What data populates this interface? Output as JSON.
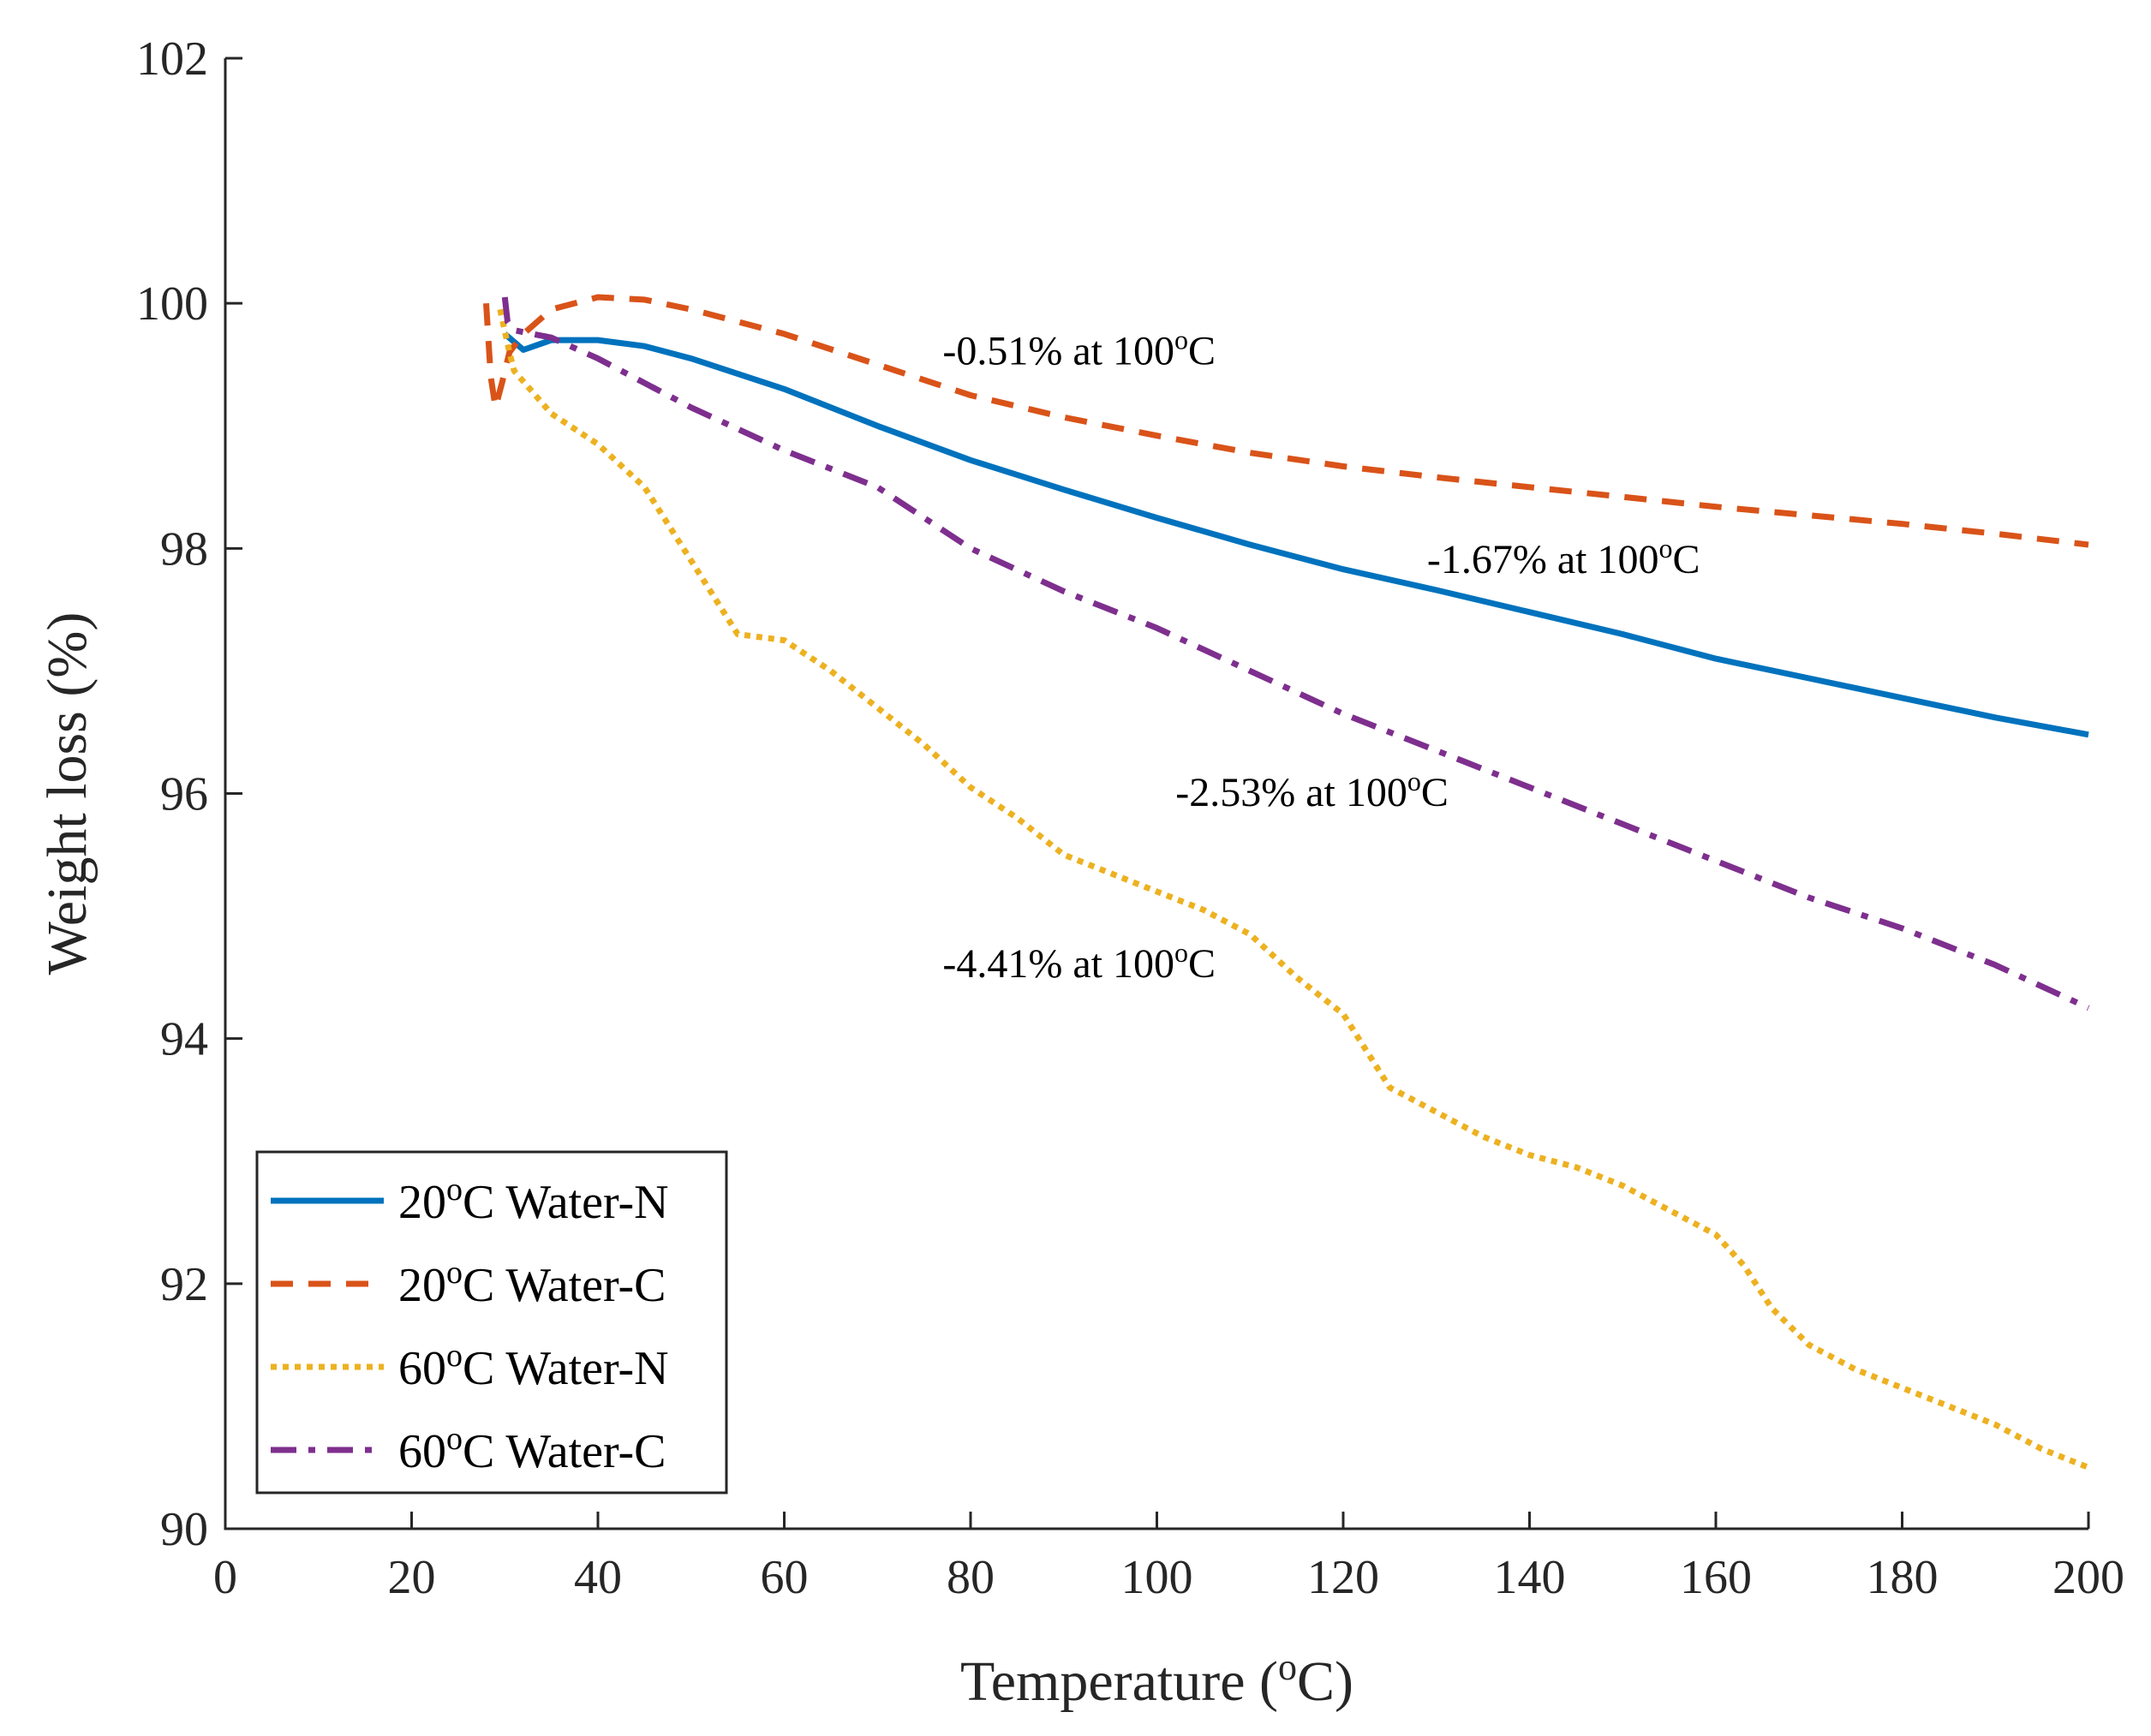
{
  "chart_data": {
    "type": "line",
    "title": "",
    "xlabel": {
      "prefix": "Temperature (",
      "sup": "o",
      "suffix": "C)"
    },
    "ylabel": "Weight loss (%)",
    "xlim": [
      0,
      200
    ],
    "ylim": [
      90,
      102
    ],
    "xticks": [
      "0",
      "20",
      "40",
      "60",
      "80",
      "100",
      "120",
      "140",
      "160",
      "180",
      "200"
    ],
    "yticks": [
      "90",
      "92",
      "94",
      "96",
      "98",
      "100",
      "102"
    ],
    "grid": false,
    "legend_position": "bottom-left",
    "series": [
      {
        "name": "20oC Water-N",
        "label": {
          "prefix": "20",
          "sup": "o",
          "suffix": "C Water-N"
        },
        "color": "#0072BD",
        "style": "solid",
        "x": [
          30,
          32,
          35,
          40,
          45,
          50,
          60,
          70,
          80,
          90,
          100,
          110,
          120,
          130,
          140,
          150,
          160,
          170,
          180,
          190,
          200
        ],
        "y": [
          99.75,
          99.62,
          99.7,
          99.7,
          99.65,
          99.55,
          99.3,
          99.0,
          98.72,
          98.48,
          98.25,
          98.03,
          97.83,
          97.66,
          97.48,
          97.3,
          97.1,
          96.94,
          96.78,
          96.62,
          96.48
        ]
      },
      {
        "name": "20oC Water-C",
        "label": {
          "prefix": "20",
          "sup": "o",
          "suffix": "C Water-C"
        },
        "color": "#D95319",
        "style": "dashed",
        "x": [
          28,
          28.5,
          29,
          29.7,
          30.5,
          32,
          35,
          40,
          45,
          50,
          60,
          70,
          80,
          90,
          100,
          110,
          120,
          130,
          140,
          150,
          160,
          170,
          180,
          190,
          200
        ],
        "y": [
          100.0,
          99.4,
          99.15,
          99.35,
          99.6,
          99.75,
          99.95,
          100.05,
          100.03,
          99.95,
          99.75,
          99.5,
          99.25,
          99.07,
          98.92,
          98.78,
          98.67,
          98.58,
          98.5,
          98.42,
          98.34,
          98.27,
          98.2,
          98.12,
          98.03
        ]
      },
      {
        "name": "60oC Water-N",
        "label": {
          "prefix": "60",
          "sup": "o",
          "suffix": "C Water-N"
        },
        "color": "#EDB120",
        "style": "dotted",
        "x": [
          29.5,
          30.5,
          31,
          35,
          40,
          45,
          50,
          55,
          60,
          65,
          70,
          75,
          80,
          85,
          90,
          95,
          100,
          105,
          110,
          115,
          120,
          125,
          130,
          135,
          140,
          145,
          150,
          155,
          160,
          163,
          166,
          170,
          175,
          180,
          185,
          190,
          195,
          200
        ],
        "y": [
          99.95,
          99.6,
          99.45,
          99.1,
          98.85,
          98.5,
          97.9,
          97.3,
          97.25,
          97.0,
          96.7,
          96.4,
          96.05,
          95.8,
          95.5,
          95.35,
          95.2,
          95.05,
          94.85,
          94.5,
          94.2,
          93.6,
          93.4,
          93.2,
          93.05,
          92.95,
          92.8,
          92.6,
          92.4,
          92.15,
          91.8,
          91.5,
          91.3,
          91.15,
          91.0,
          90.85,
          90.65,
          90.5
        ]
      },
      {
        "name": "60oC Water-C",
        "label": {
          "prefix": "60",
          "sup": "o",
          "suffix": "C Water-C"
        },
        "color": "#7E2F8E",
        "style": "dashdot",
        "x": [
          30,
          30.3,
          31,
          35,
          40,
          45,
          50,
          60,
          70,
          80,
          90,
          100,
          110,
          120,
          130,
          140,
          150,
          160,
          170,
          180,
          190,
          200
        ],
        "y": [
          100.05,
          99.85,
          99.78,
          99.72,
          99.55,
          99.35,
          99.15,
          98.8,
          98.5,
          98.0,
          97.65,
          97.35,
          97.0,
          96.65,
          96.35,
          96.05,
          95.75,
          95.45,
          95.15,
          94.9,
          94.6,
          94.25
        ]
      }
    ],
    "annotations": [
      {
        "id": "ann-1",
        "x": 77,
        "y": 99.5,
        "prefix": "-0.51% at 100",
        "sup": "o",
        "suffix": "C"
      },
      {
        "id": "ann-2",
        "x": 129,
        "y": 97.8,
        "prefix": "-1.67% at 100",
        "sup": "o",
        "suffix": "C"
      },
      {
        "id": "ann-3",
        "x": 102,
        "y": 95.9,
        "prefix": "-2.53% at 100",
        "sup": "o",
        "suffix": "C"
      },
      {
        "id": "ann-4",
        "x": 77,
        "y": 94.5,
        "prefix": "-4.41% at 100",
        "sup": "o",
        "suffix": "C"
      }
    ]
  }
}
